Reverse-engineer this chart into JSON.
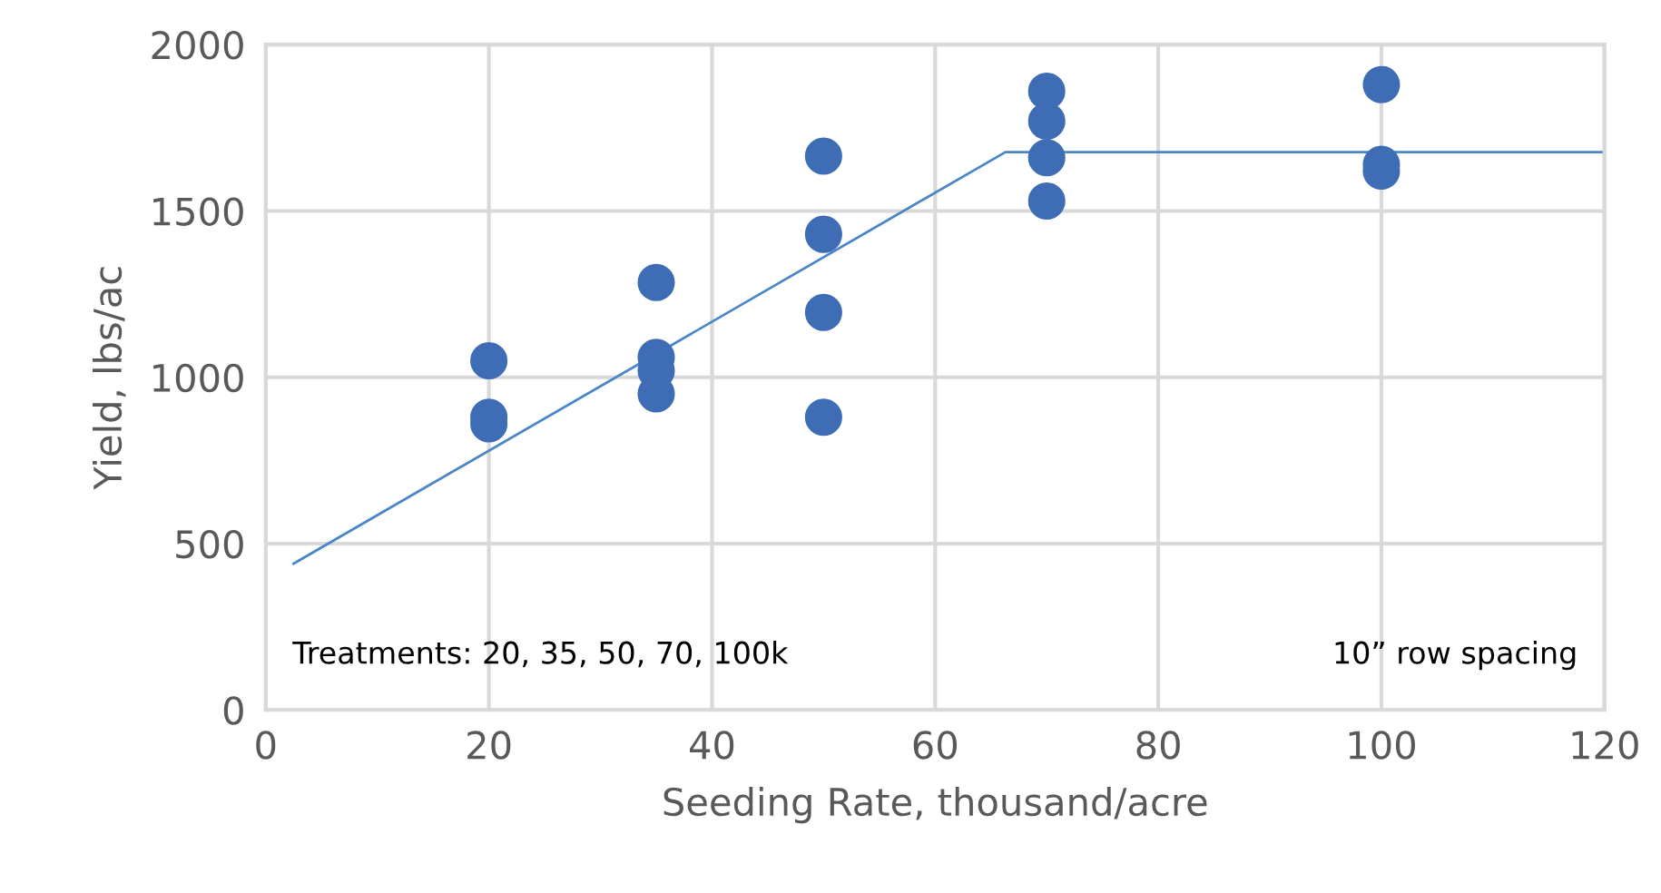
{
  "chart_data": {
    "type": "scatter",
    "xlabel": "Seeding Rate, thousand/acre",
    "ylabel": "Yield, lbs/ac",
    "xlim": [
      0,
      120
    ],
    "xticks": [
      0,
      20,
      40,
      60,
      80,
      100,
      120
    ],
    "ylim": [
      0,
      2000
    ],
    "yticks": [
      0,
      500,
      1000,
      1500,
      2000
    ],
    "grid": true,
    "marker": "circle",
    "series": [
      {
        "color": "#3e6db5",
        "x": [
          20,
          20,
          20,
          35,
          35,
          35,
          35,
          50,
          50,
          50,
          50,
          70,
          70,
          70,
          70,
          100,
          100,
          100
        ],
        "values": [
          1050,
          880,
          860,
          1285,
          1060,
          1020,
          950,
          1665,
          1430,
          1195,
          880,
          1860,
          1770,
          1660,
          1530,
          1880,
          1640,
          1620
        ]
      },
      {
        "type": "line",
        "color": "#4a86c8",
        "marker": "none",
        "line_style": "solid",
        "x": [
          2.5,
          66.3,
          120
        ],
        "values": [
          440,
          1677,
          1677
        ]
      }
    ],
    "annotations": [
      "Treatments: 20, 35, 50, 70, 100k",
      "10” row spacing"
    ]
  }
}
